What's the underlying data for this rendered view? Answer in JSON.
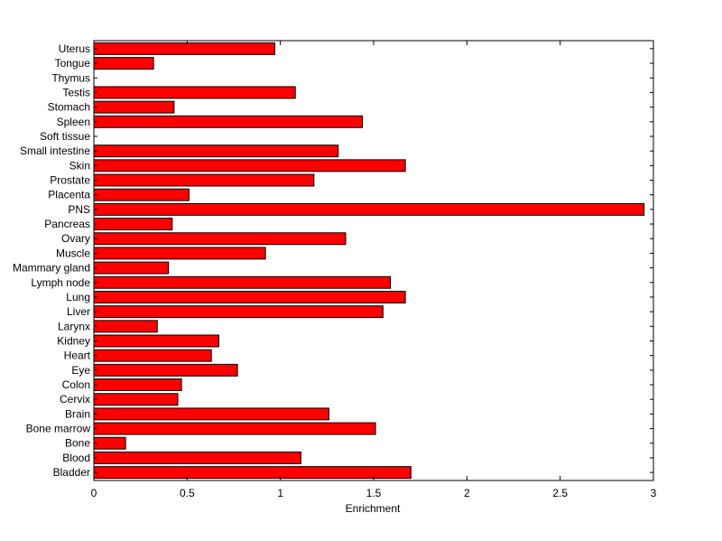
{
  "chart_data": {
    "type": "bar",
    "orientation": "horizontal",
    "title": "",
    "xlabel": "Enrichment",
    "ylabel": "",
    "xlim": [
      0,
      3
    ],
    "xticks": [
      "0",
      "0.5",
      "1",
      "1.5",
      "2",
      "2.5",
      "3"
    ],
    "grid": false,
    "legend": "none",
    "bar_color": "#ff0000",
    "categories": [
      "Uterus",
      "Tongue",
      "Thymus",
      "Testis",
      "Stomach",
      "Spleen",
      "Soft tissue",
      "Small intestine",
      "Skin",
      "Prostate",
      "Placenta",
      "PNS",
      "Pancreas",
      "Ovary",
      "Muscle",
      "Mammary gland",
      "Lymph node",
      "Lung",
      "Liver",
      "Larynx",
      "Kidney",
      "Heart",
      "Eye",
      "Colon",
      "Cervix",
      "Brain",
      "Bone marrow",
      "Bone",
      "Blood",
      "Bladder"
    ],
    "values": [
      0.97,
      0.32,
      0.0,
      1.08,
      0.43,
      1.44,
      0.0,
      1.31,
      1.67,
      1.18,
      0.51,
      2.95,
      0.42,
      1.35,
      0.92,
      0.4,
      1.59,
      1.67,
      1.55,
      0.34,
      0.67,
      0.63,
      0.77,
      0.47,
      0.45,
      1.26,
      1.51,
      0.17,
      1.11,
      1.7
    ]
  }
}
